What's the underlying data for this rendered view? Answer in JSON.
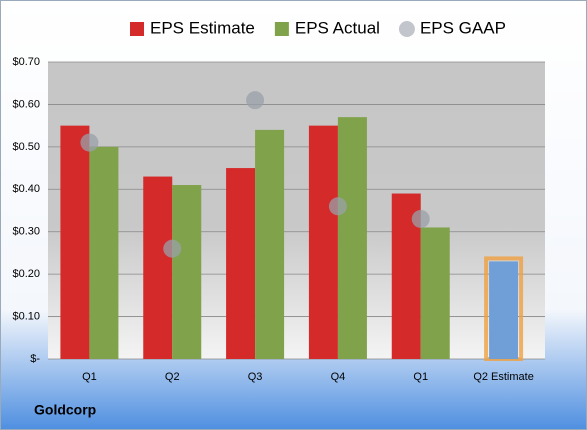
{
  "chart_data": {
    "type": "bar",
    "categories": [
      "Q1",
      "Q2",
      "Q3",
      "Q4",
      "Q1",
      "Q2 Estimate"
    ],
    "series": [
      {
        "name": "EPS Estimate",
        "color": "#d42a2a",
        "values": [
          0.55,
          0.43,
          0.45,
          0.55,
          0.39,
          0.23
        ],
        "point_colors": [
          null,
          null,
          null,
          null,
          null,
          "#6f9fd6"
        ]
      },
      {
        "name": "EPS Actual",
        "color": "#7fa24a",
        "values": [
          0.5,
          0.41,
          0.54,
          0.57,
          0.31,
          null
        ]
      },
      {
        "name": "EPS GAAP",
        "color": "#9aa0aa",
        "marker": "circle",
        "values": [
          0.51,
          0.26,
          0.61,
          0.36,
          0.33,
          null
        ]
      }
    ],
    "ylim": [
      0,
      0.7
    ],
    "yticks": [
      {
        "value": 0,
        "label": "$-"
      },
      {
        "value": 0.1,
        "label": "$0.10"
      },
      {
        "value": 0.2,
        "label": "$0.20"
      },
      {
        "value": 0.3,
        "label": "$0.30"
      },
      {
        "value": 0.4,
        "label": "$0.40"
      },
      {
        "value": 0.5,
        "label": "$0.50"
      },
      {
        "value": 0.6,
        "label": "$0.60"
      },
      {
        "value": 0.7,
        "label": "$0.70"
      }
    ],
    "grid": true,
    "legend": "top",
    "footer": "Goldcorp"
  }
}
